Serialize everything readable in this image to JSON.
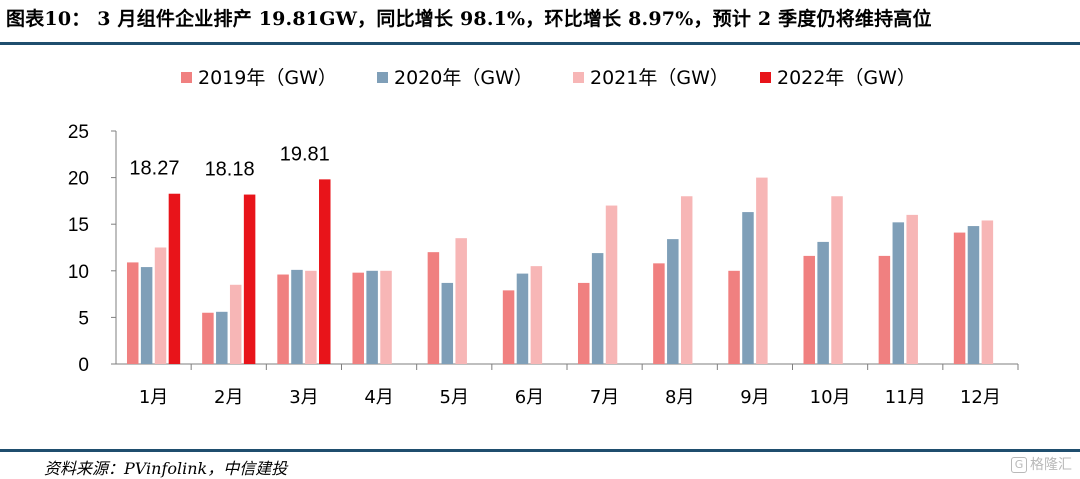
{
  "page": {
    "title": "图表10： 3 月组件企业排产 19.81GW，同比增长 98.1%，环比增长 8.97%，预计 2 季度仍将维持高位",
    "source": "资料来源：PVinfolink，中信建投",
    "watermark": "格隆汇",
    "watermark_icon": "G"
  },
  "chart_data": {
    "type": "bar",
    "title": "",
    "xlabel": "",
    "ylabel": "",
    "ylim": [
      0,
      25
    ],
    "yticks": [
      0,
      5,
      10,
      15,
      20,
      25
    ],
    "grid": false,
    "legend_position": "top",
    "categories": [
      "1月",
      "2月",
      "3月",
      "4月",
      "5月",
      "6月",
      "7月",
      "8月",
      "9月",
      "10月",
      "11月",
      "12月"
    ],
    "series": [
      {
        "name": "2019年（GW）",
        "color": "#f08080",
        "values": [
          10.9,
          5.5,
          9.6,
          9.8,
          12.0,
          7.9,
          8.7,
          10.8,
          10.0,
          11.6,
          11.6,
          14.1
        ]
      },
      {
        "name": "2020年（GW）",
        "color": "#7f9fb8",
        "values": [
          10.4,
          5.6,
          10.1,
          10.0,
          8.7,
          9.7,
          11.9,
          13.4,
          16.3,
          13.1,
          15.2,
          14.8
        ]
      },
      {
        "name": "2021年（GW）",
        "color": "#f7b6b6",
        "values": [
          12.5,
          8.5,
          10.0,
          10.0,
          13.5,
          10.5,
          17.0,
          18.0,
          20.0,
          18.0,
          16.0,
          15.4
        ]
      },
      {
        "name": "2022年（GW）",
        "color": "#e8141a",
        "values": [
          18.27,
          18.18,
          19.81,
          null,
          null,
          null,
          null,
          null,
          null,
          null,
          null,
          null
        ]
      }
    ],
    "data_labels": [
      {
        "series": 3,
        "index": 0,
        "text": "18.27"
      },
      {
        "series": 3,
        "index": 1,
        "text": "18.18"
      },
      {
        "series": 3,
        "index": 2,
        "text": "19.81"
      }
    ]
  }
}
